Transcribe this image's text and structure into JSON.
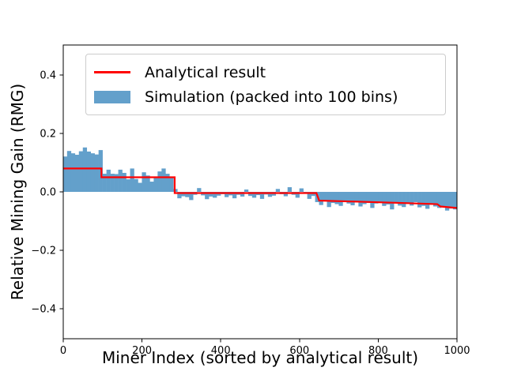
{
  "figure": {
    "background": "#ffffff"
  },
  "axes": {
    "xlabel": "Miner Index (sorted by analytical result)",
    "ylabel": "Relative Mining Gain (RMG)"
  },
  "legend": {
    "items": [
      {
        "label": "Analytical result",
        "type": "line",
        "color": "#ff0000"
      },
      {
        "label": "Simulation (packed into 100 bins)",
        "type": "patch",
        "color": "#63a0cb"
      }
    ]
  },
  "chart_data": {
    "type": "bar",
    "title": "",
    "xlabel": "Miner Index (sorted by analytical result)",
    "ylabel": "Relative Mining Gain (RMG)",
    "xlim": [
      0,
      1000
    ],
    "ylim": [
      -0.5,
      0.5
    ],
    "grid": false,
    "legend_position": "upper left",
    "x_ticks": [
      0,
      200,
      400,
      600,
      800,
      1000
    ],
    "x_tick_labels": [
      "0",
      "200",
      "400",
      "600",
      "800",
      "1000"
    ],
    "y_ticks": [
      0.4,
      0.2,
      0.0,
      -0.2,
      -0.4
    ],
    "y_tick_labels": [
      "0.4",
      "0.2",
      "0.0",
      "−0.2",
      "−0.4"
    ],
    "bins": 100,
    "bin_width": 10,
    "bar_series": {
      "name": "Simulation (packed into 100 bins)",
      "color": "#63a0cb",
      "values": [
        0.121,
        0.14,
        0.132,
        0.127,
        0.139,
        0.152,
        0.138,
        0.132,
        0.128,
        0.143,
        0.062,
        0.076,
        0.062,
        0.061,
        0.076,
        0.065,
        0.043,
        0.08,
        0.044,
        0.031,
        0.067,
        0.056,
        0.035,
        0.049,
        0.07,
        0.08,
        0.062,
        0.051,
        0.01,
        -0.022,
        -0.015,
        -0.018,
        -0.028,
        -0.01,
        0.013,
        -0.012,
        -0.025,
        -0.016,
        -0.02,
        -0.013,
        -0.008,
        -0.018,
        -0.012,
        -0.022,
        -0.01,
        -0.016,
        0.008,
        -0.014,
        -0.02,
        -0.011,
        -0.024,
        -0.009,
        -0.017,
        -0.013,
        0.01,
        -0.008,
        -0.015,
        0.016,
        -0.01,
        -0.02,
        0.012,
        -0.006,
        -0.024,
        -0.014,
        -0.035,
        -0.045,
        -0.03,
        -0.052,
        -0.038,
        -0.042,
        -0.048,
        -0.033,
        -0.04,
        -0.046,
        -0.036,
        -0.05,
        -0.042,
        -0.038,
        -0.055,
        -0.04,
        -0.034,
        -0.048,
        -0.043,
        -0.06,
        -0.038,
        -0.047,
        -0.052,
        -0.041,
        -0.047,
        -0.035,
        -0.053,
        -0.048,
        -0.058,
        -0.044,
        -0.05,
        -0.055,
        -0.05,
        -0.064,
        -0.057,
        -0.06
      ]
    },
    "line_series": {
      "name": "Analytical result",
      "color": "#ff0000",
      "points": [
        [
          0,
          0.08
        ],
        [
          97,
          0.08
        ],
        [
          97,
          0.05
        ],
        [
          283,
          0.05
        ],
        [
          283,
          -0.004
        ],
        [
          643,
          -0.004
        ],
        [
          650,
          -0.03
        ],
        [
          760,
          -0.034
        ],
        [
          860,
          -0.038
        ],
        [
          950,
          -0.042
        ],
        [
          958,
          -0.05
        ],
        [
          1000,
          -0.055
        ]
      ]
    }
  }
}
